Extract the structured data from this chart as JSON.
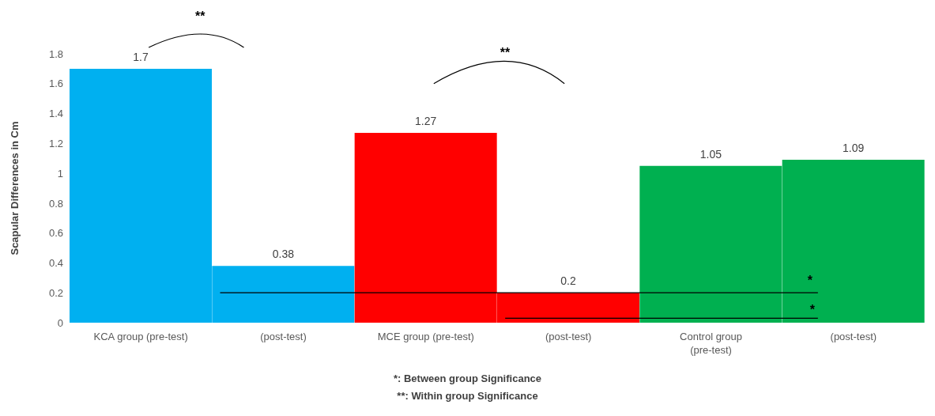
{
  "chart_data": {
    "type": "bar",
    "ylabel": "Scapular Differences in Cm",
    "categories": [
      "KCA group (pre-test)",
      "(post-test)",
      "MCE group (pre-test)",
      "(post-test)",
      "Control group (pre-test)",
      "(post-test)"
    ],
    "values": [
      1.7,
      0.38,
      1.27,
      0.2,
      1.05,
      1.09
    ],
    "colors": [
      "#00b0f0",
      "#00b0f0",
      "#ff0000",
      "#ff0000",
      "#00b050",
      "#00b050"
    ],
    "ylim": [
      0,
      1.8
    ],
    "yticks": [
      0,
      0.2,
      0.4,
      0.6,
      0.8,
      1,
      1.2,
      1.4,
      1.6,
      1.8
    ],
    "data_labels": true,
    "annotations": [
      "**",
      "**",
      "*",
      "*",
      "*: Between group Significance",
      "**: Within group Significance"
    ]
  }
}
